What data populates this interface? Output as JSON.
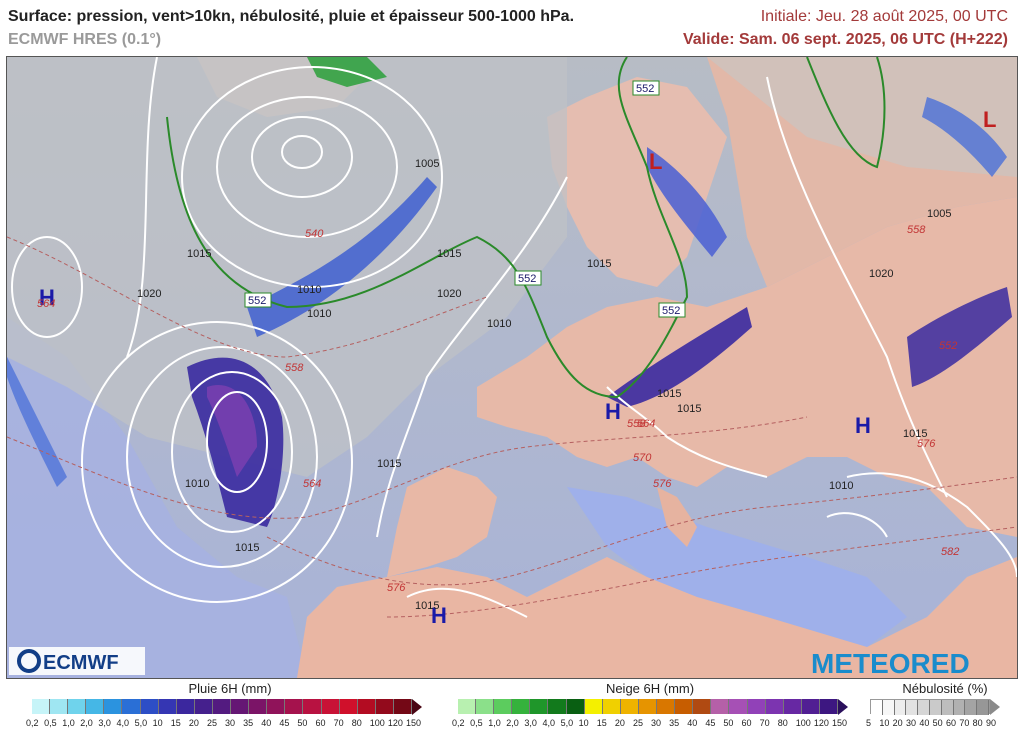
{
  "header": {
    "title": "Surface: pression, vent>10kn, nébulosité, pluie et épaisseur 500-1000 hPa.",
    "model": "ECMWF HRES (0.1°)",
    "initial": "Initiale: Jeu. 28 août 2025, 00 UTC",
    "valid": "Valide: Sam. 06 sept. 2025, 06 UTC (H+222)"
  },
  "logos": {
    "left": "ECMWF",
    "right": "METEORED"
  },
  "pressure_centers": [
    {
      "type": "H",
      "label": "H"
    },
    {
      "type": "H",
      "label": "H"
    },
    {
      "type": "H",
      "label": "H"
    },
    {
      "type": "H",
      "label": "H"
    },
    {
      "type": "L",
      "label": "L"
    },
    {
      "type": "L",
      "label": "L"
    }
  ],
  "isobar_labels": [
    "1005",
    "1015",
    "1015",
    "1020",
    "1010",
    "1015",
    "1020",
    "1015",
    "1010",
    "1015",
    "1015",
    "1015",
    "1005",
    "1010",
    "1015",
    "1020",
    "1015",
    "1010",
    "1010"
  ],
  "thickness_labels": [
    "540",
    "558",
    "564",
    "564",
    "558",
    "564",
    "570",
    "576",
    "576",
    "558",
    "552",
    "576",
    "582"
  ],
  "thickness_box_labels": [
    "552",
    "552",
    "552",
    "552"
  ],
  "legend": {
    "rain": {
      "title": "Pluie 6H (mm)",
      "ticks": [
        "0,2",
        "0,5",
        "1,0",
        "2,0",
        "3,0",
        "4,0",
        "5,0",
        "10",
        "15",
        "20",
        "25",
        "30",
        "35",
        "40",
        "45",
        "50",
        "60",
        "70",
        "80",
        "100",
        "120",
        "150"
      ],
      "colors": [
        "#c6f4f8",
        "#9fe6f2",
        "#6fd3ec",
        "#45b7e6",
        "#2b93df",
        "#2a6fd6",
        "#2d4ec6",
        "#3536b3",
        "#3b279e",
        "#45208d",
        "#531b80",
        "#651774",
        "#7b1467",
        "#90135a",
        "#a5124d",
        "#b81241",
        "#c81236",
        "#d0102b",
        "#b30c22",
        "#930a1c",
        "#740816"
      ],
      "arrow_color": "#4a0614"
    },
    "snow": {
      "title": "Neige 6H (mm)",
      "ticks": [
        "0,2",
        "0,5",
        "1,0",
        "2,0",
        "3,0",
        "4,0",
        "5,0",
        "10",
        "15",
        "20",
        "25",
        "30",
        "35",
        "40",
        "45",
        "50",
        "60",
        "70",
        "80",
        "100",
        "120",
        "150"
      ],
      "colors": [
        "#b8f0b0",
        "#8be08a",
        "#5ccc5e",
        "#35b23c",
        "#1f962a",
        "#127a1c",
        "#095f12",
        "#f4f000",
        "#f0d000",
        "#efb300",
        "#e69400",
        "#d97700",
        "#c75d00",
        "#b04a12",
        "#b560a8",
        "#a650b5",
        "#9141b8",
        "#7c34b0",
        "#6728a3",
        "#511f93",
        "#3d1781"
      ],
      "arrow_color": "#2a0f5c"
    },
    "cloud": {
      "title": "Nébulosité (%)",
      "ticks": [
        "5",
        "10",
        "20",
        "30",
        "40",
        "50",
        "60",
        "70",
        "80",
        "90"
      ],
      "colors": [
        "#ffffff",
        "#f7f7f7",
        "#ededed",
        "#e2e2e2",
        "#d6d6d6",
        "#cacaca",
        "#bdbdbd",
        "#b1b1b1",
        "#a4a4a4",
        "#979797"
      ],
      "arrow_color": "#8a8a8a"
    }
  }
}
